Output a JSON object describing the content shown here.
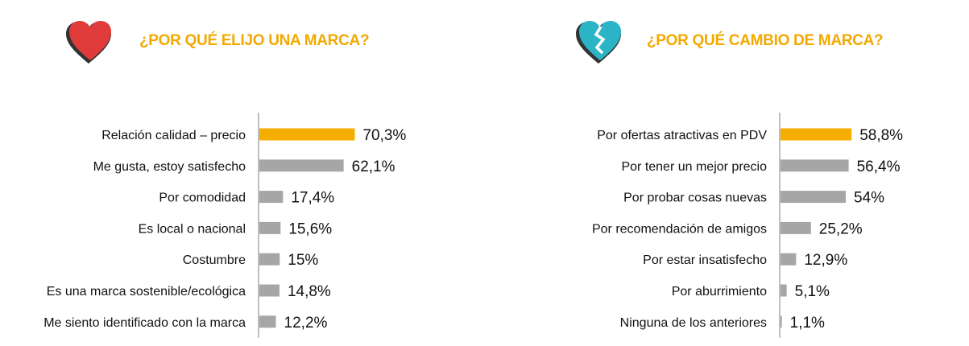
{
  "colors": {
    "accent": "#f2a900",
    "bar": "#a6a6a6",
    "highlight": "#f5ad00",
    "heart_red": "#e03a3a",
    "heart_teal": "#2bb4c6",
    "heart_shadow": "#333333"
  },
  "icons": {
    "left": "heart-icon",
    "right": "broken-heart-icon"
  },
  "chart_data": [
    {
      "type": "bar",
      "orientation": "horizontal",
      "title": "¿POR QUÉ ELIJO UNA MARCA?",
      "categories": [
        "Relación calidad – precio",
        "Me gusta, estoy satisfecho",
        "Por comodidad",
        "Es local o nacional",
        "Costumbre",
        "Es una marca sostenible/ecológica",
        "Me siento identificado con la marca"
      ],
      "values": [
        70.3,
        62.1,
        17.4,
        15.6,
        15,
        14.8,
        12.2
      ],
      "value_labels": [
        "70,3%",
        "62,1%",
        "17,4%",
        "15,6%",
        "15%",
        "14,8%",
        "12,2%"
      ],
      "highlight_index": 0,
      "xlim": [
        0,
        100
      ],
      "grid": false
    },
    {
      "type": "bar",
      "orientation": "horizontal",
      "title": "¿POR QUÉ CAMBIO DE MARCA?",
      "categories": [
        "Por ofertas atractivas en PDV",
        "Por tener un mejor precio",
        "Por probar cosas nuevas",
        "Por recomendación de amigos",
        "Por estar insatisfecho",
        "Por aburrimiento",
        "Ninguna de los anteriores"
      ],
      "values": [
        58.8,
        56.4,
        54,
        25.2,
        12.9,
        5.1,
        1.1
      ],
      "value_labels": [
        "58,8%",
        "56,4%",
        "54%",
        "25,2%",
        "12,9%",
        "5,1%",
        "1,1%"
      ],
      "highlight_index": 0,
      "xlim": [
        0,
        100
      ],
      "grid": false
    }
  ]
}
